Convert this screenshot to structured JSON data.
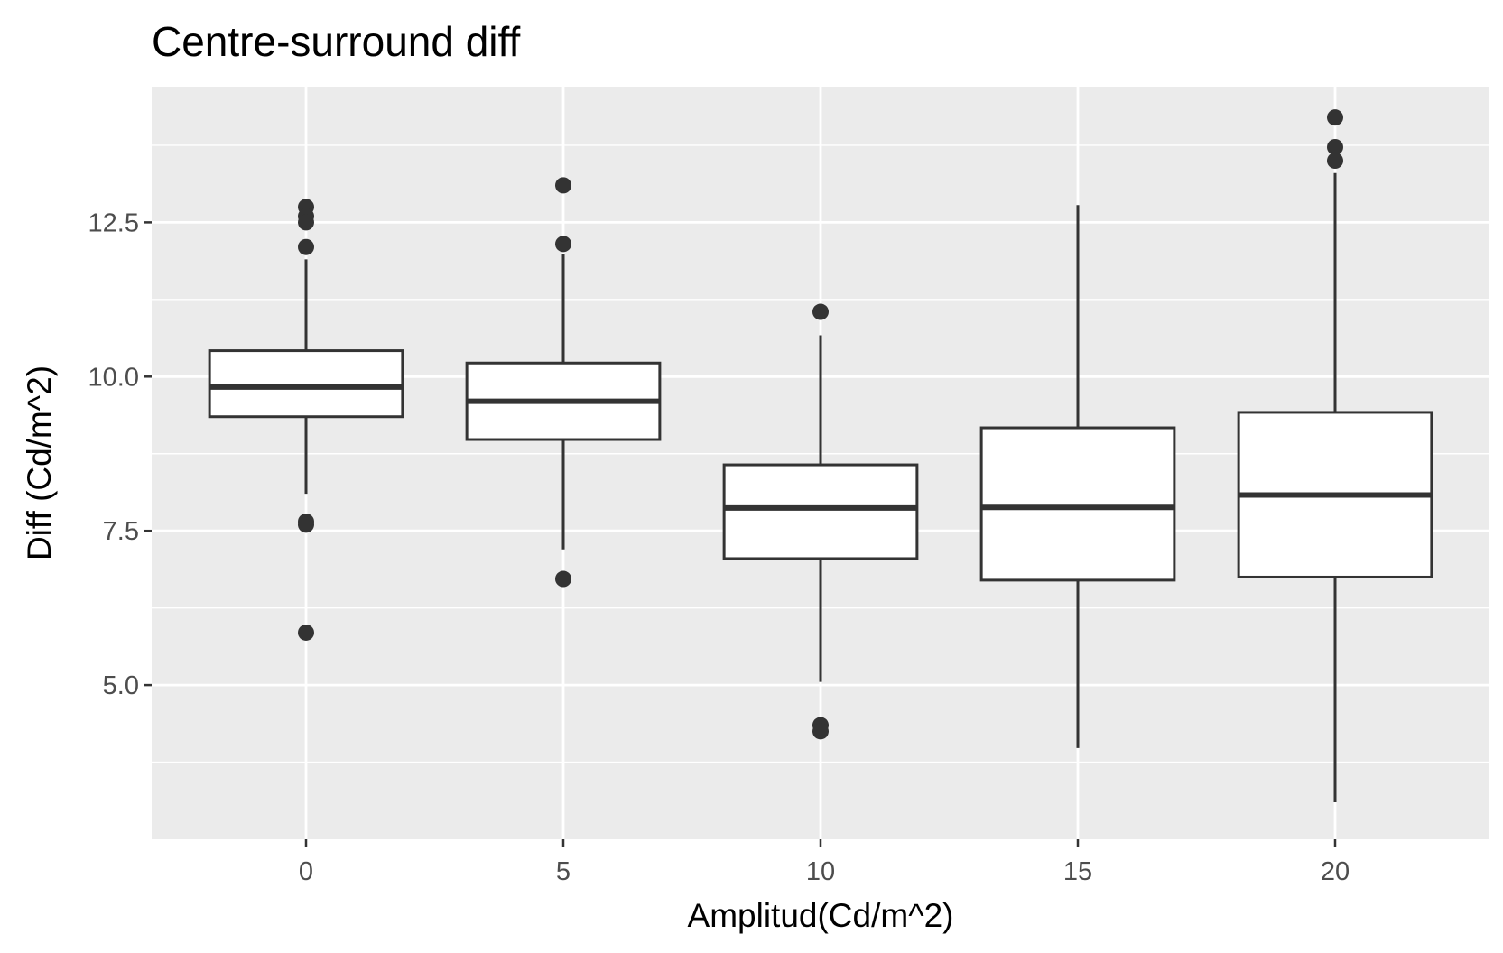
{
  "chart_data": {
    "type": "box",
    "title": "Centre-surround diff",
    "xlabel": "Amplitud(Cd/m^2)",
    "ylabel": "Diff (Cd/m^2)",
    "x_ticks": [
      "0",
      "5",
      "10",
      "15",
      "20"
    ],
    "y_ticks": [
      "5.0",
      "7.5",
      "10.0",
      "12.5"
    ],
    "xlim": [
      -3,
      23
    ],
    "ylim": [
      2.5,
      14.7
    ],
    "grid": true,
    "colors": {
      "panel": "#ebebeb",
      "grid": "#ffffff",
      "box_fill": "#ffffff",
      "box_line": "#333333",
      "outlier": "#333333"
    },
    "boxes": [
      {
        "x": 0,
        "lower_whisker": 8.1,
        "q1": 9.35,
        "median": 9.83,
        "q3": 10.42,
        "upper_whisker": 11.9,
        "outliers": [
          12.75,
          12.6,
          12.5,
          12.1,
          7.65,
          7.6,
          5.85
        ]
      },
      {
        "x": 5,
        "lower_whisker": 7.2,
        "q1": 8.98,
        "median": 9.6,
        "q3": 10.22,
        "upper_whisker": 11.98,
        "outliers": [
          13.1,
          12.15,
          6.72
        ]
      },
      {
        "x": 10,
        "lower_whisker": 5.05,
        "q1": 7.05,
        "median": 7.87,
        "q3": 8.57,
        "upper_whisker": 10.67,
        "outliers": [
          11.05,
          4.35,
          4.25
        ]
      },
      {
        "x": 15,
        "lower_whisker": 3.98,
        "q1": 6.7,
        "median": 7.88,
        "q3": 9.17,
        "upper_whisker": 12.78,
        "outliers": []
      },
      {
        "x": 20,
        "lower_whisker": 3.1,
        "q1": 6.75,
        "median": 8.08,
        "q3": 9.42,
        "upper_whisker": 13.3,
        "outliers": [
          14.2,
          13.72,
          13.5
        ]
      }
    ]
  }
}
